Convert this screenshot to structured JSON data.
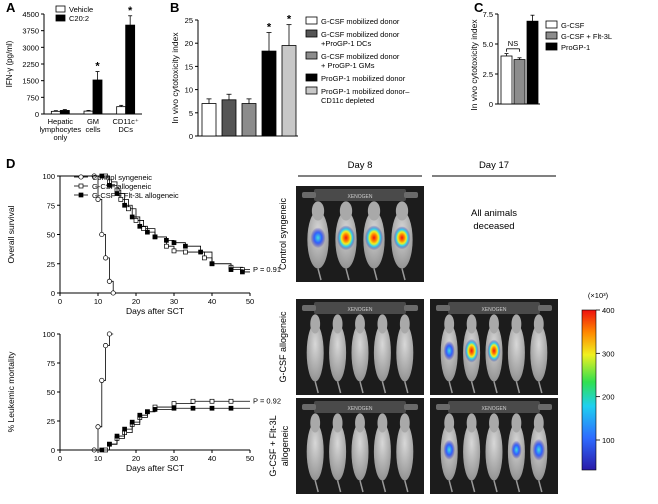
{
  "panels": {
    "A": {
      "letter": "A",
      "chart_type": "bar",
      "ylabel": "IFN-γ (pg/ml)",
      "ylim": [
        0,
        4500
      ],
      "yticks": [
        "0",
        "750",
        "1500",
        "2250",
        "3000",
        "3750",
        "4500"
      ],
      "categories": [
        "Hepatic lymphocytes only",
        "GM cells",
        "CD11c⁺ DCs"
      ],
      "category_lines": [
        [
          "Hepatic",
          "lymphocytes",
          "only"
        ],
        [
          "GM",
          "cells"
        ],
        [
          "CD11c⁺",
          "DCs"
        ]
      ],
      "legend": [
        "Vehicle",
        "C20:2"
      ],
      "series": [
        {
          "name": "Vehicle",
          "values": [
            120,
            130,
            330
          ],
          "errors": [
            30,
            30,
            60
          ],
          "color": "#ffffff"
        },
        {
          "name": "C20:2",
          "values": [
            160,
            1530,
            4000
          ],
          "errors": [
            40,
            380,
            420
          ],
          "color": "#000000"
        }
      ],
      "significance": [
        "",
        "*",
        "*"
      ]
    },
    "B": {
      "letter": "B",
      "chart_type": "bar",
      "ylabel": "In vivo cytotoxicity index",
      "ylim": [
        0,
        25
      ],
      "yticks": [
        "0",
        "5",
        "10",
        "15",
        "20",
        "25"
      ],
      "legend": [
        {
          "lines": [
            "G-CSF mobilized donor"
          ],
          "color": "#ffffff"
        },
        {
          "lines": [
            "G-CSF mobilized donor",
            "+ProGP-1 DCs"
          ],
          "color": "#555555"
        },
        {
          "lines": [
            "G-CSF mobilized donor",
            "+ ProGP-1 GMs"
          ],
          "color": "#8c8c8c"
        },
        {
          "lines": [
            "ProGP-1 mobilized donor"
          ],
          "color": "#000000"
        },
        {
          "lines": [
            "ProGP-1 mobilized donor–",
            "CD11c depleted"
          ],
          "color": "#c8c8c8"
        }
      ],
      "values": [
        7,
        7.8,
        7,
        18.3,
        19.5
      ],
      "errors": [
        1.0,
        1.2,
        1.0,
        4.0,
        4.5
      ],
      "significance": [
        "",
        "",
        "",
        "*",
        "*"
      ]
    },
    "C": {
      "letter": "C",
      "chart_type": "bar",
      "ylabel": "In vivo cytotoxicity index",
      "ylim": [
        0,
        7.5
      ],
      "yticks": [
        "0",
        "2.5",
        "5.0",
        "7.5"
      ],
      "legend": [
        {
          "label": "G-CSF",
          "color": "#ffffff"
        },
        {
          "label": "G-CSF + Flt-3L",
          "color": "#8c8c8c"
        },
        {
          "label": "ProGP-1",
          "color": "#000000"
        }
      ],
      "values": [
        4.0,
        3.7,
        6.9
      ],
      "errors": [
        0.2,
        0.15,
        0.5
      ],
      "annotation": "NS"
    },
    "D": {
      "letter": "D",
      "survival": {
        "chart_type": "line",
        "ylabel": "Overall survival",
        "xlabel": "Days after SCT",
        "xlim": [
          0,
          50
        ],
        "ylim": [
          0,
          100
        ],
        "xticks": [
          "0",
          "10",
          "20",
          "30",
          "40",
          "50"
        ],
        "yticks": [
          "0",
          "25",
          "50",
          "75",
          "100"
        ],
        "legend": [
          "Control syngeneic",
          "G-CSF allogeneic",
          "G-CSF + Flt-3L allogeneic"
        ],
        "pvalue": "P = 0.91",
        "series": [
          {
            "name": "Control syngeneic",
            "marker": "open-circle",
            "x": [
              0,
              9,
              10,
              11,
              12,
              13,
              14,
              14.5
            ],
            "y": [
              100,
              100,
              80,
              50,
              30,
              10,
              0,
              0
            ]
          },
          {
            "name": "G-CSF allogeneic",
            "marker": "open-square",
            "x": [
              0,
              12,
              13,
              15,
              16,
              18,
              20,
              22,
              25,
              28,
              30,
              33,
              38,
              40,
              45,
              48,
              50
            ],
            "y": [
              100,
              100,
              95,
              88,
              80,
              72,
              62,
              55,
              48,
              40,
              36,
              35,
              30,
              25,
              22,
              20,
              20
            ]
          },
          {
            "name": "G-CSF + Flt-3L allogeneic",
            "marker": "filled-square",
            "x": [
              0,
              11,
              13,
              15,
              17,
              19,
              21,
              23,
              25,
              28,
              30,
              33,
              37,
              40,
              45,
              48,
              50
            ],
            "y": [
              100,
              100,
              92,
              85,
              75,
              65,
              57,
              52,
              48,
              45,
              43,
              40,
              35,
              25,
              20,
              18,
              18
            ]
          }
        ]
      },
      "mortality": {
        "chart_type": "line",
        "ylabel": "% Leukemic mortality",
        "xlabel": "Days after SCT",
        "xlim": [
          0,
          50
        ],
        "ylim": [
          0,
          100
        ],
        "xticks": [
          "0",
          "10",
          "20",
          "30",
          "40",
          "50"
        ],
        "yticks": [
          "0",
          "25",
          "50",
          "75",
          "100"
        ],
        "pvalue": "P = 0.92",
        "series": [
          {
            "name": "Control syngeneic",
            "marker": "open-circle",
            "x": [
              0,
              9,
              10,
              11,
              12,
              13,
              14
            ],
            "y": [
              0,
              0,
              20,
              60,
              90,
              100,
              100
            ]
          },
          {
            "name": "G-CSF allogeneic",
            "marker": "open-square",
            "x": [
              0,
              12,
              13,
              15,
              17,
              19,
              21,
              23,
              25,
              30,
              35,
              40,
              45,
              50
            ],
            "y": [
              0,
              0,
              5,
              10,
              15,
              22,
              28,
              33,
              37,
              40,
              42,
              42,
              42,
              42
            ]
          },
          {
            "name": "G-CSF + Flt-3L allogeneic",
            "marker": "filled-square",
            "x": [
              0,
              11,
              13,
              15,
              17,
              19,
              21,
              23,
              25,
              30,
              35,
              40,
              45,
              50
            ],
            "y": [
              0,
              0,
              5,
              12,
              18,
              24,
              30,
              33,
              35,
              36,
              36,
              36,
              36,
              36
            ]
          }
        ]
      },
      "imaging": {
        "columns": [
          "Day 8",
          "Day 17"
        ],
        "rows": [
          "Control syngeneic",
          "G-CSF allogeneic",
          "G-CSF + Flt-3L allogeneic"
        ],
        "row_label_lines": [
          [
            "Control syngeneic"
          ],
          [
            "G-CSF allogeneic"
          ],
          [
            "G-CSF + Flt-3L",
            "allogeneic"
          ]
        ],
        "deceased_note": [
          "All animals",
          "deceased"
        ],
        "instrument_label": "XENOGEN",
        "colorbar": {
          "unit": "(×10³)",
          "ticks": [
            "400",
            "300",
            "200",
            "100"
          ],
          "min": 100,
          "max": 400,
          "tick_values": [
            400,
            300,
            200,
            100
          ]
        },
        "signal": [
          [
            [
              0.6,
              0.95,
              0.95,
              0.8
            ],
            null
          ],
          [
            [
              0,
              0,
              0,
              0,
              0
            ],
            [
              0.5,
              0.85,
              0.75,
              0,
              0
            ]
          ],
          [
            [
              0,
              0,
              0,
              0,
              0
            ],
            [
              0.55,
              0,
              0,
              0.4,
              0.7
            ]
          ]
        ]
      }
    }
  }
}
